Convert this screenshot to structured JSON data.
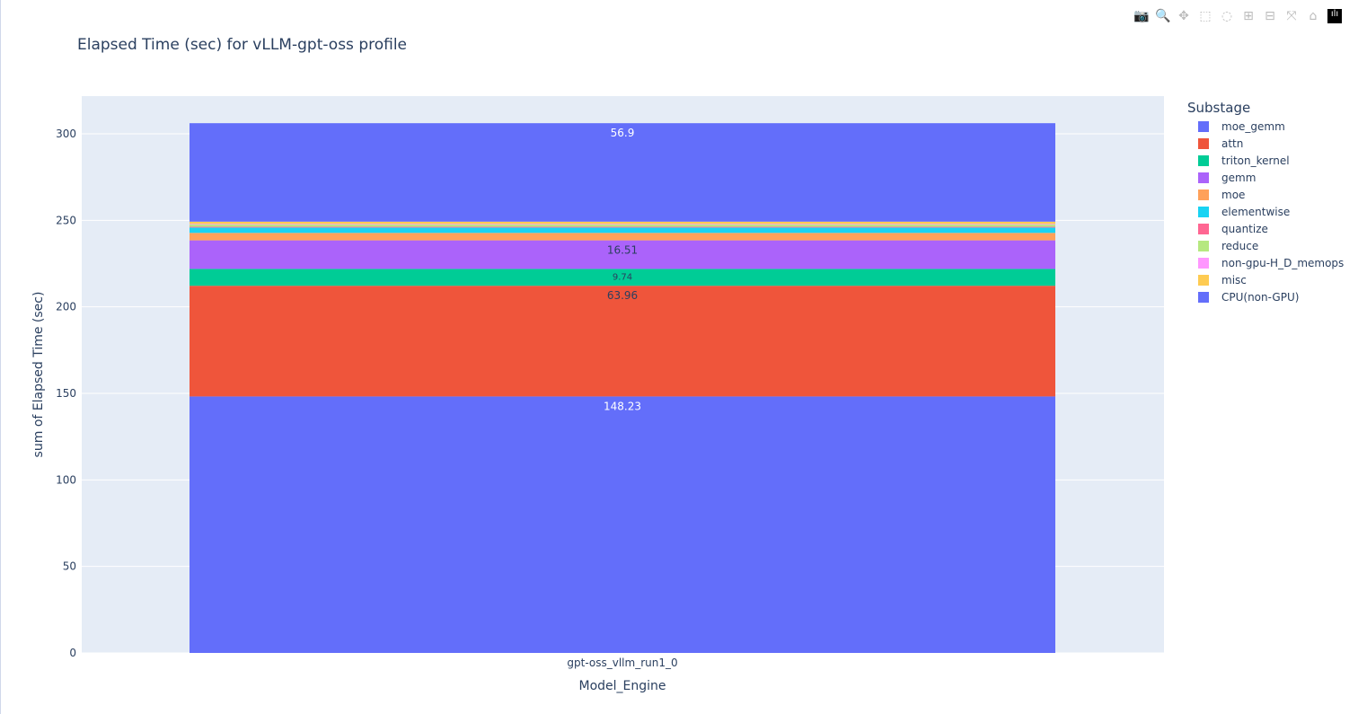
{
  "chart_data": {
    "type": "bar",
    "barmode": "stack",
    "title": "Elapsed Time (sec) for vLLM-gpt-oss profile",
    "xlabel": "Model_Engine",
    "ylabel": "sum of Elapsed Time (sec)",
    "categories": [
      "gpt-oss_vllm_run1_0"
    ],
    "ylim": [
      0,
      320
    ],
    "yticks": [
      0,
      50,
      100,
      150,
      200,
      250,
      300
    ],
    "grid": true,
    "legend_title": "Substage",
    "legend_placement": "right",
    "series": [
      {
        "name": "moe_gemm",
        "values": [
          148.23
        ],
        "color": "#636efa",
        "label": "148.23",
        "label_color": "#ffffff"
      },
      {
        "name": "attn",
        "values": [
          63.96
        ],
        "color": "#ef553b",
        "label": "63.96",
        "label_color": "#2a3f5f"
      },
      {
        "name": "triton_kernel",
        "values": [
          9.74
        ],
        "color": "#00cc96",
        "label": "9.74",
        "label_color": "#2a3f5f"
      },
      {
        "name": "gemm",
        "values": [
          16.51
        ],
        "color": "#ab63fa",
        "label": "16.51",
        "label_color": "#2a3f5f"
      },
      {
        "name": "moe",
        "values": [
          4.3
        ],
        "color": "#ffa15a"
      },
      {
        "name": "elementwise",
        "values": [
          3.1
        ],
        "color": "#19d3f3"
      },
      {
        "name": "quantize",
        "values": [
          0.5
        ],
        "color": "#ff6692"
      },
      {
        "name": "reduce",
        "values": [
          1.2
        ],
        "color": "#b6e880"
      },
      {
        "name": "non-gpu-H_D_memops",
        "values": [
          0.4
        ],
        "color": "#ff97ff"
      },
      {
        "name": "misc",
        "values": [
          1.3
        ],
        "color": "#fecb52"
      },
      {
        "name": "CPU(non-GPU)",
        "values": [
          56.9
        ],
        "color": "#636efa",
        "label": "56.9",
        "label_color": "#ffffff"
      }
    ]
  },
  "modebar": [
    "camera-icon",
    "zoom-icon",
    "pan-icon",
    "box-select-icon",
    "lasso-icon",
    "zoom-in-icon",
    "zoom-out-icon",
    "autoscale-icon",
    "home-icon",
    "plotly-logo-icon"
  ]
}
